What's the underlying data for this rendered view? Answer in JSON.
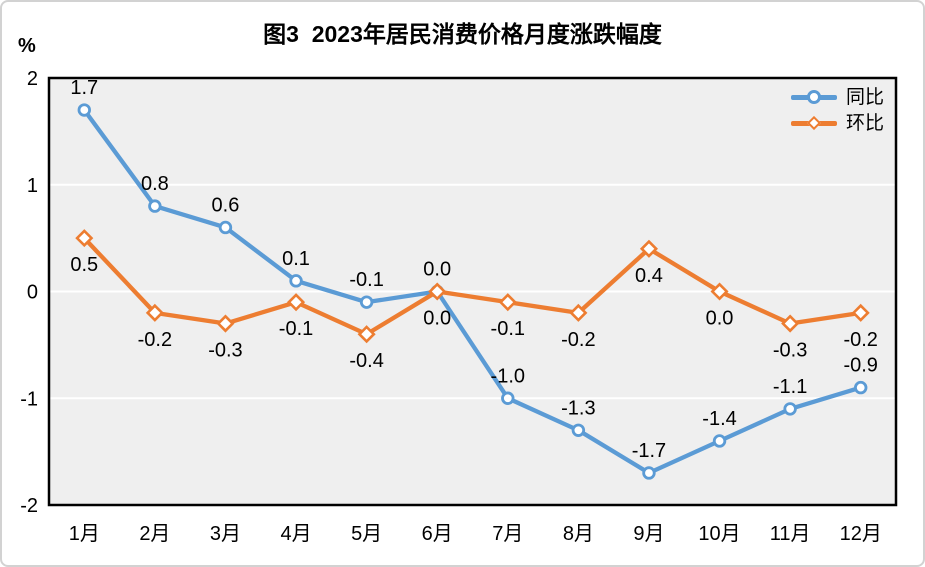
{
  "chart_data": {
    "type": "line",
    "title": "图3  2023年居民消费价格月度涨跌幅度",
    "ylabel": "%",
    "categories": [
      "1月",
      "2月",
      "3月",
      "4月",
      "5月",
      "6月",
      "7月",
      "8月",
      "9月",
      "10月",
      "11月",
      "12月"
    ],
    "ylim": [
      -2,
      2
    ],
    "yticks": [
      2,
      1,
      0,
      -1,
      -2
    ],
    "grid": "horizontal-white-gridlines",
    "legend_position": "top-right-inside-plot",
    "series": [
      {
        "id": "yoy",
        "name": "同比",
        "color": "#5B9BD5",
        "marker": "circle",
        "label_position": "above",
        "values": [
          1.7,
          0.8,
          0.6,
          0.1,
          -0.1,
          0.0,
          -1.0,
          -1.3,
          -1.7,
          -1.4,
          -1.1,
          -0.9
        ]
      },
      {
        "id": "mom",
        "name": "环比",
        "color": "#ED7D31",
        "marker": "diamond",
        "label_position": "below",
        "values": [
          0.5,
          -0.2,
          -0.3,
          -0.1,
          -0.4,
          0.0,
          -0.1,
          -0.2,
          0.4,
          0.0,
          -0.3,
          -0.2
        ]
      }
    ]
  },
  "style": {
    "plot_bg": "#EFEFEF",
    "grid_color": "#FFFFFF",
    "axis_border": "#000000",
    "text_color": "#000000",
    "frame_border": "#D2D2D2",
    "background": "#FFFFFF"
  }
}
